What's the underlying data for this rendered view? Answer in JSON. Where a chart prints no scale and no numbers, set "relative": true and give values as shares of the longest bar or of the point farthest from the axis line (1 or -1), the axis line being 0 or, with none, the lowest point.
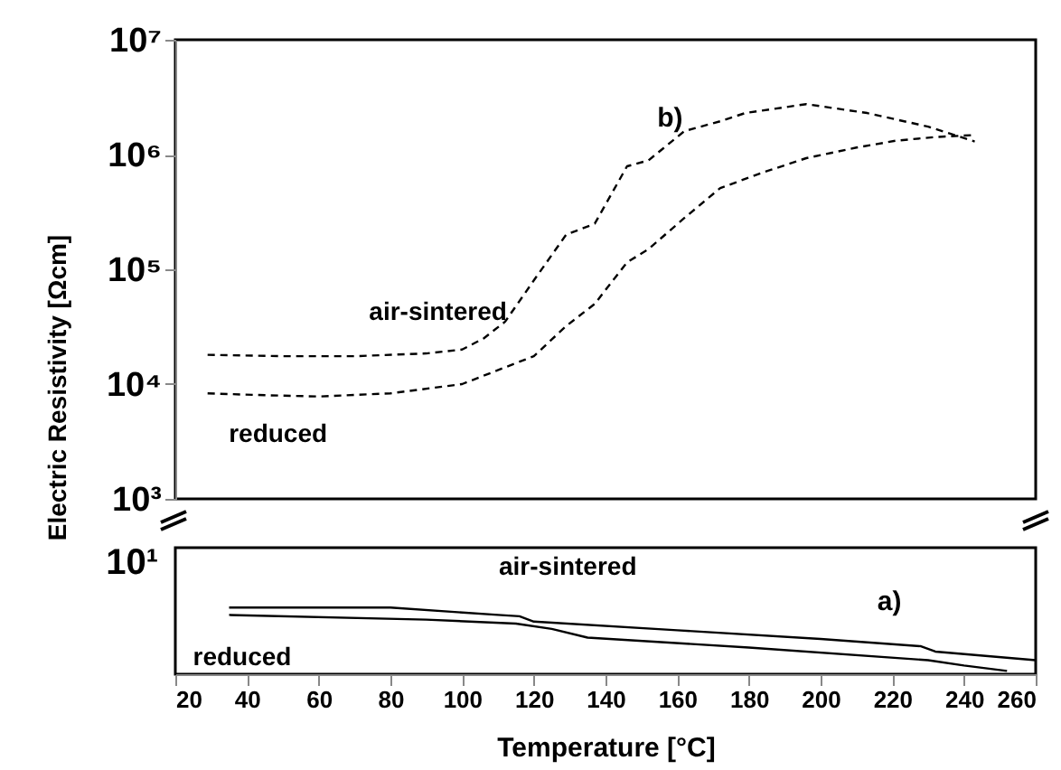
{
  "chart_data": [
    {
      "type": "line",
      "ylabel": "Electric Resistivity [Ωcm]",
      "log": "y",
      "xlim": [
        20,
        260
      ],
      "ylim": [
        1000,
        10000000
      ],
      "yticks": [
        {
          "value": 1000,
          "label": "10³"
        },
        {
          "value": 10000,
          "label": "10⁴"
        },
        {
          "value": 100000,
          "label": "10⁵"
        },
        {
          "value": 1000000,
          "label": "10⁶"
        },
        {
          "value": 10000000,
          "label": "10⁷"
        }
      ],
      "tick_labels": "y",
      "line_style": "dashed",
      "marker": "none",
      "legend": false,
      "annotations": [
        "b)"
      ],
      "series": [
        {
          "name": "air-sintered",
          "color": "#000000",
          "x": [
            29,
            50,
            70,
            90,
            100,
            106,
            112,
            120,
            129,
            137,
            146,
            152,
            162,
            172,
            179,
            196,
            213,
            230,
            243
          ],
          "values": [
            18000,
            17500,
            17500,
            18500,
            20000,
            25000,
            35000,
            80000,
            200000,
            250000,
            790000,
            890000,
            1600000,
            1950000,
            2300000,
            2750000,
            2300000,
            1750000,
            1300000
          ]
        },
        {
          "name": "reduced",
          "color": "#000000",
          "x": [
            29,
            45,
            60,
            80,
            100,
            112,
            120,
            129,
            137,
            146,
            152,
            162,
            172,
            184,
            196,
            210,
            221,
            232,
            243
          ],
          "values": [
            8300,
            8000,
            7800,
            8300,
            10000,
            14000,
            17500,
            32000,
            50000,
            115000,
            150000,
            280000,
            510000,
            700000,
            930000,
            1150000,
            1320000,
            1420000,
            1480000
          ]
        }
      ]
    },
    {
      "type": "line",
      "relative": true,
      "xlabel": "Temperature [°C]",
      "xlim": [
        20,
        260
      ],
      "xticks": [
        20,
        40,
        60,
        80,
        100,
        120,
        140,
        160,
        180,
        200,
        220,
        240,
        260
      ],
      "line_style": "solid",
      "marker": "none",
      "legend": false,
      "annotations": [
        "10¹",
        "a)"
      ],
      "series": [
        {
          "name": "air-sintered",
          "color": "#000000",
          "x": [
            35,
            80,
            110,
            116,
            120,
            160,
            200,
            228,
            232,
            260
          ],
          "values": [
            1,
            1,
            0.89,
            0.87,
            0.79,
            0.66,
            0.53,
            0.42,
            0.34,
            0.21
          ]
        },
        {
          "name": "reduced",
          "color": "#000000",
          "x": [
            35,
            90,
            115,
            125,
            135,
            180,
            230,
            240,
            252
          ],
          "values": [
            0.89,
            0.82,
            0.76,
            0.68,
            0.55,
            0.4,
            0.21,
            0.13,
            0.05
          ]
        }
      ]
    }
  ]
}
